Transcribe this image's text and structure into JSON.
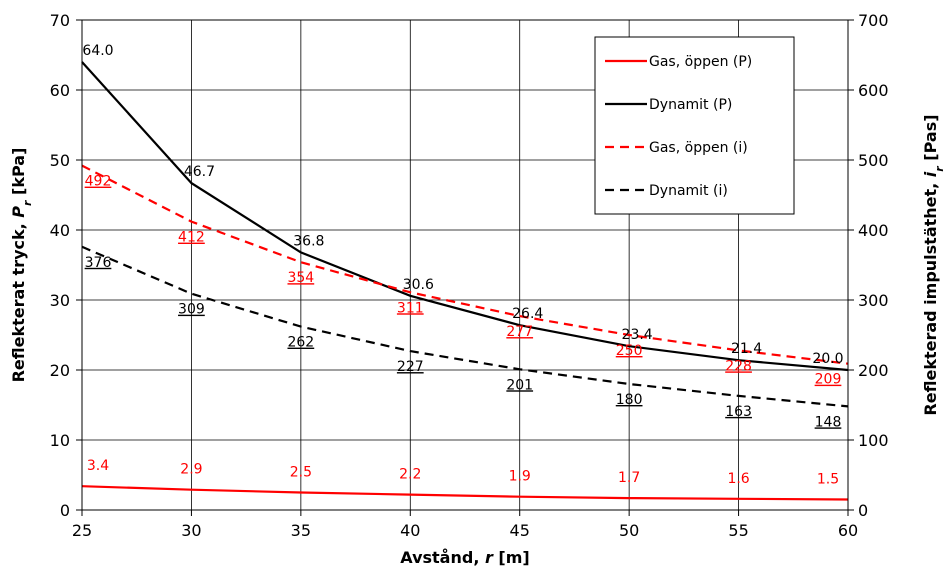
{
  "chart_data": {
    "type": "line",
    "title": "",
    "xlabel_parts": [
      "Avstånd, ",
      "r",
      " [m]"
    ],
    "ylabel_left_parts": [
      "Reflekterat tryck, ",
      "P",
      "r",
      " [kPa]"
    ],
    "ylabel_right_parts": [
      "Reflekterad impulstäthet, ",
      "i",
      "r",
      " [Pas]"
    ],
    "x": [
      25,
      30,
      35,
      40,
      45,
      50,
      55,
      60
    ],
    "xlim": [
      25,
      60
    ],
    "ylim_left": [
      0,
      70
    ],
    "ylim_right": [
      0,
      700
    ],
    "x_ticks": [
      "25",
      "30",
      "35",
      "40",
      "45",
      "50",
      "55",
      "60"
    ],
    "y_left_ticks": [
      "0",
      "10",
      "20",
      "30",
      "40",
      "50",
      "60",
      "70"
    ],
    "y_right_ticks": [
      "0",
      "100",
      "200",
      "300",
      "400",
      "500",
      "600",
      "700"
    ],
    "grid": true,
    "legend_position": "top-right",
    "series": [
      {
        "name": "Gas, öppen (P)",
        "axis": "left",
        "color": "#ff0000",
        "dashed": false,
        "underline": false,
        "values": [
          3.4,
          2.9,
          2.5,
          2.2,
          1.9,
          1.7,
          1.6,
          1.5
        ],
        "labels": [
          "3.4",
          "2.9",
          "2.5",
          "2.2",
          "1.9",
          "1.7",
          "1.6",
          "1.5"
        ]
      },
      {
        "name": "Dynamit (P)",
        "axis": "left",
        "color": "#000000",
        "dashed": false,
        "underline": false,
        "values": [
          64.0,
          46.7,
          36.8,
          30.6,
          26.4,
          23.4,
          21.4,
          20.0
        ],
        "labels": [
          "64.0",
          "46.7",
          "36.8",
          "30.6",
          "26.4",
          "23.4",
          "21.4",
          "20.0"
        ]
      },
      {
        "name": "Gas, öppen (i)",
        "axis": "right",
        "color": "#ff0000",
        "dashed": true,
        "underline": true,
        "values": [
          492,
          412,
          354,
          311,
          277,
          250,
          228,
          209
        ],
        "labels": [
          "492",
          "412",
          "354",
          "311",
          "277",
          "250",
          "228",
          "209"
        ]
      },
      {
        "name": "Dynamit (i)",
        "axis": "right",
        "color": "#000000",
        "dashed": true,
        "underline": true,
        "values": [
          376,
          309,
          262,
          227,
          201,
          180,
          163,
          148
        ],
        "labels": [
          "376",
          "309",
          "262",
          "227",
          "201",
          "180",
          "163",
          "148"
        ]
      }
    ]
  }
}
